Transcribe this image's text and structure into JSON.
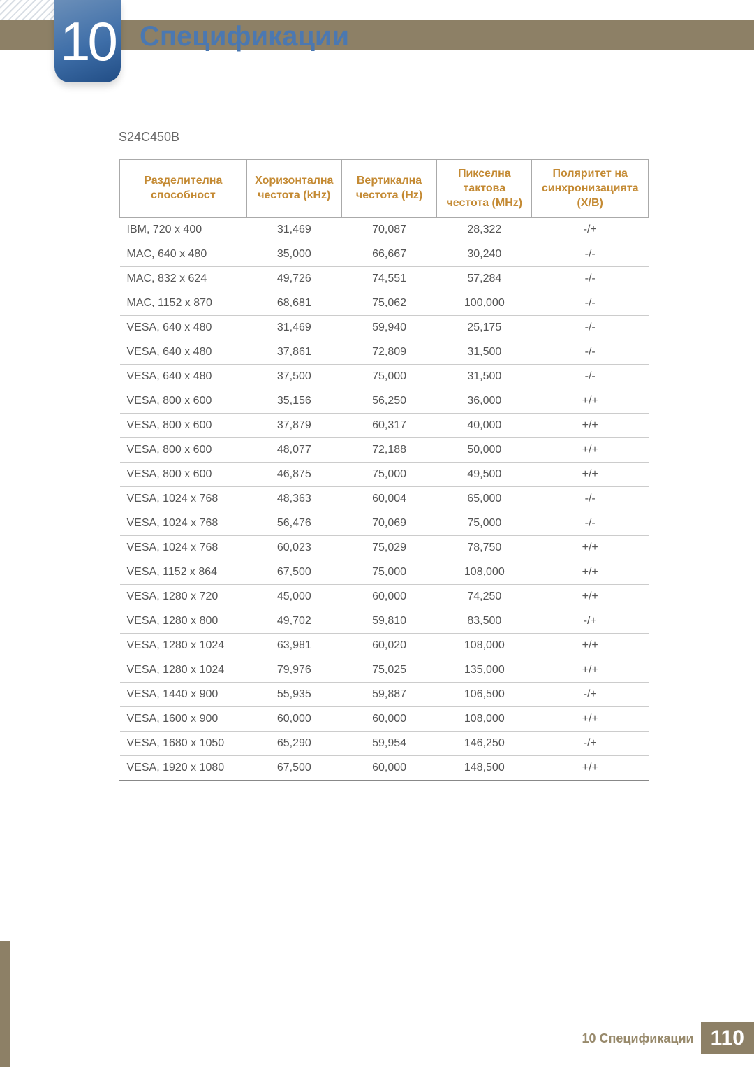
{
  "chapter": {
    "number": "10",
    "title": "Спецификации"
  },
  "model": "S24C450B",
  "table": {
    "headers": [
      "Разделителна способност",
      "Хоризонтална честота (kHz)",
      "Вертикална честота (Hz)",
      "Пикселна тактова честота (MHz)",
      "Поляритет на синхронизацията (X/B)"
    ],
    "rows": [
      [
        "IBM, 720 x 400",
        "31,469",
        "70,087",
        "28,322",
        "-/+"
      ],
      [
        "MAC, 640 x 480",
        "35,000",
        "66,667",
        "30,240",
        "-/-"
      ],
      [
        "MAC, 832 x 624",
        "49,726",
        "74,551",
        "57,284",
        "-/-"
      ],
      [
        "MAC, 1152 x 870",
        "68,681",
        "75,062",
        "100,000",
        "-/-"
      ],
      [
        "VESA, 640 x 480",
        "31,469",
        "59,940",
        "25,175",
        "-/-"
      ],
      [
        "VESA, 640 x 480",
        "37,861",
        "72,809",
        "31,500",
        "-/-"
      ],
      [
        "VESA, 640 x 480",
        "37,500",
        "75,000",
        "31,500",
        "-/-"
      ],
      [
        "VESA, 800 x 600",
        "35,156",
        "56,250",
        "36,000",
        "+/+"
      ],
      [
        "VESA, 800 x 600",
        "37,879",
        "60,317",
        "40,000",
        "+/+"
      ],
      [
        "VESA, 800 x 600",
        "48,077",
        "72,188",
        "50,000",
        "+/+"
      ],
      [
        "VESA, 800 x 600",
        "46,875",
        "75,000",
        "49,500",
        "+/+"
      ],
      [
        "VESA, 1024 x 768",
        "48,363",
        "60,004",
        "65,000",
        "-/-"
      ],
      [
        "VESA, 1024 x 768",
        "56,476",
        "70,069",
        "75,000",
        "-/-"
      ],
      [
        "VESA, 1024 x 768",
        "60,023",
        "75,029",
        "78,750",
        "+/+"
      ],
      [
        "VESA, 1152 x 864",
        "67,500",
        "75,000",
        "108,000",
        "+/+"
      ],
      [
        "VESA, 1280 x 720",
        "45,000",
        "60,000",
        "74,250",
        "+/+"
      ],
      [
        "VESA, 1280 x 800",
        "49,702",
        "59,810",
        "83,500",
        "-/+"
      ],
      [
        "VESA, 1280 x 1024",
        "63,981",
        "60,020",
        "108,000",
        "+/+"
      ],
      [
        "VESA, 1280 x 1024",
        "79,976",
        "75,025",
        "135,000",
        "+/+"
      ],
      [
        "VESA, 1440 x 900",
        "55,935",
        "59,887",
        "106,500",
        "-/+"
      ],
      [
        "VESA, 1600 x 900",
        "60,000",
        "60,000",
        "108,000",
        "+/+"
      ],
      [
        "VESA, 1680 x 1050",
        "65,290",
        "59,954",
        "146,250",
        "-/+"
      ],
      [
        "VESA, 1920 x 1080",
        "67,500",
        "60,000",
        "148,500",
        "+/+"
      ]
    ]
  },
  "footer": {
    "text": "10 Спецификации",
    "page": "110"
  },
  "colors": {
    "brand_brown": "#8d8066",
    "brand_blue": "#4b78b1",
    "header_orange": "#c48a33"
  }
}
